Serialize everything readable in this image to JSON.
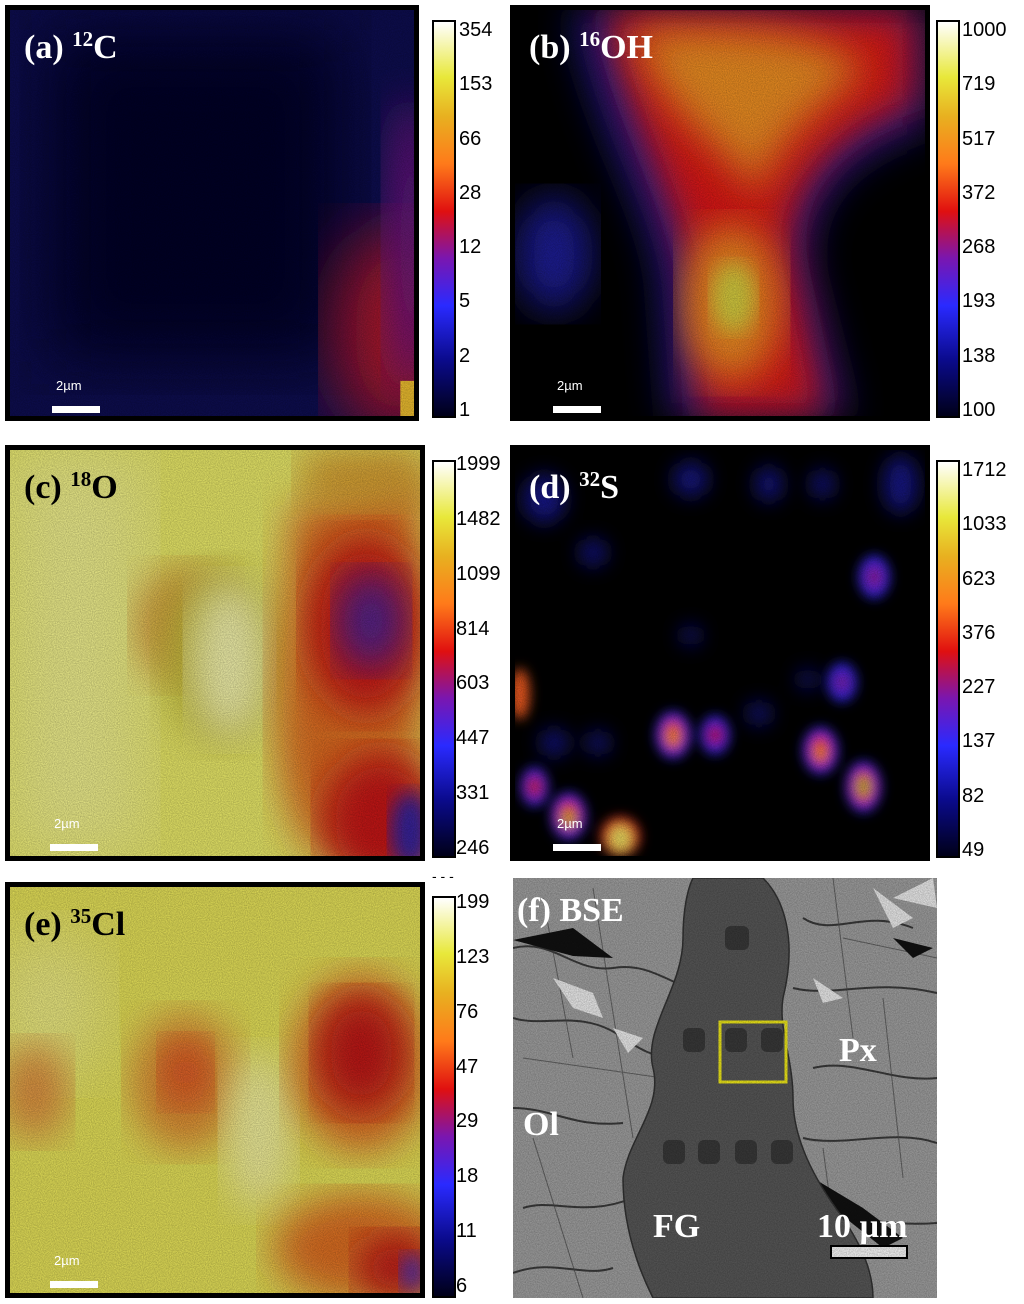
{
  "panels": {
    "a": {
      "label": "(a) ",
      "isotope_mass": "12",
      "element": "C",
      "scale_text": "2µm",
      "colorbar_ticks": [
        "354",
        "153",
        "66",
        "28",
        "12",
        "5",
        "2",
        "1"
      ]
    },
    "b": {
      "label": "(b) ",
      "isotope_mass": "16",
      "element": "OH",
      "scale_text": "2µm",
      "colorbar_ticks": [
        "1000",
        "719",
        "517",
        "372",
        "268",
        "193",
        "138",
        "100"
      ]
    },
    "c": {
      "label": "(c) ",
      "isotope_mass": "18",
      "element": "O",
      "scale_text": "2µm",
      "colorbar_ticks": [
        "1999",
        "1482",
        "1099",
        "814",
        "603",
        "447",
        "331",
        "246"
      ]
    },
    "d": {
      "label": "(d) ",
      "isotope_mass": "32",
      "element": "S",
      "scale_text": "2µm",
      "colorbar_ticks": [
        "1712",
        "1033",
        "623",
        "376",
        "227",
        "137",
        "82",
        "49"
      ]
    },
    "e": {
      "label": "(e) ",
      "isotope_mass": "35",
      "element": "Cl",
      "scale_text": "2µm",
      "colorbar_ticks": [
        "199",
        "123",
        "76",
        "47",
        "29",
        "18",
        "11",
        "6"
      ]
    },
    "f": {
      "label": "(f) BSE",
      "phase_px": "Px",
      "phase_ol": "Ol",
      "phase_fg": "FG",
      "scale_text": "10 µm"
    }
  },
  "misc": {
    "dashes": "- - -"
  },
  "colors": {
    "box_highlight": "#f5ee1a",
    "frame": "#000000"
  }
}
